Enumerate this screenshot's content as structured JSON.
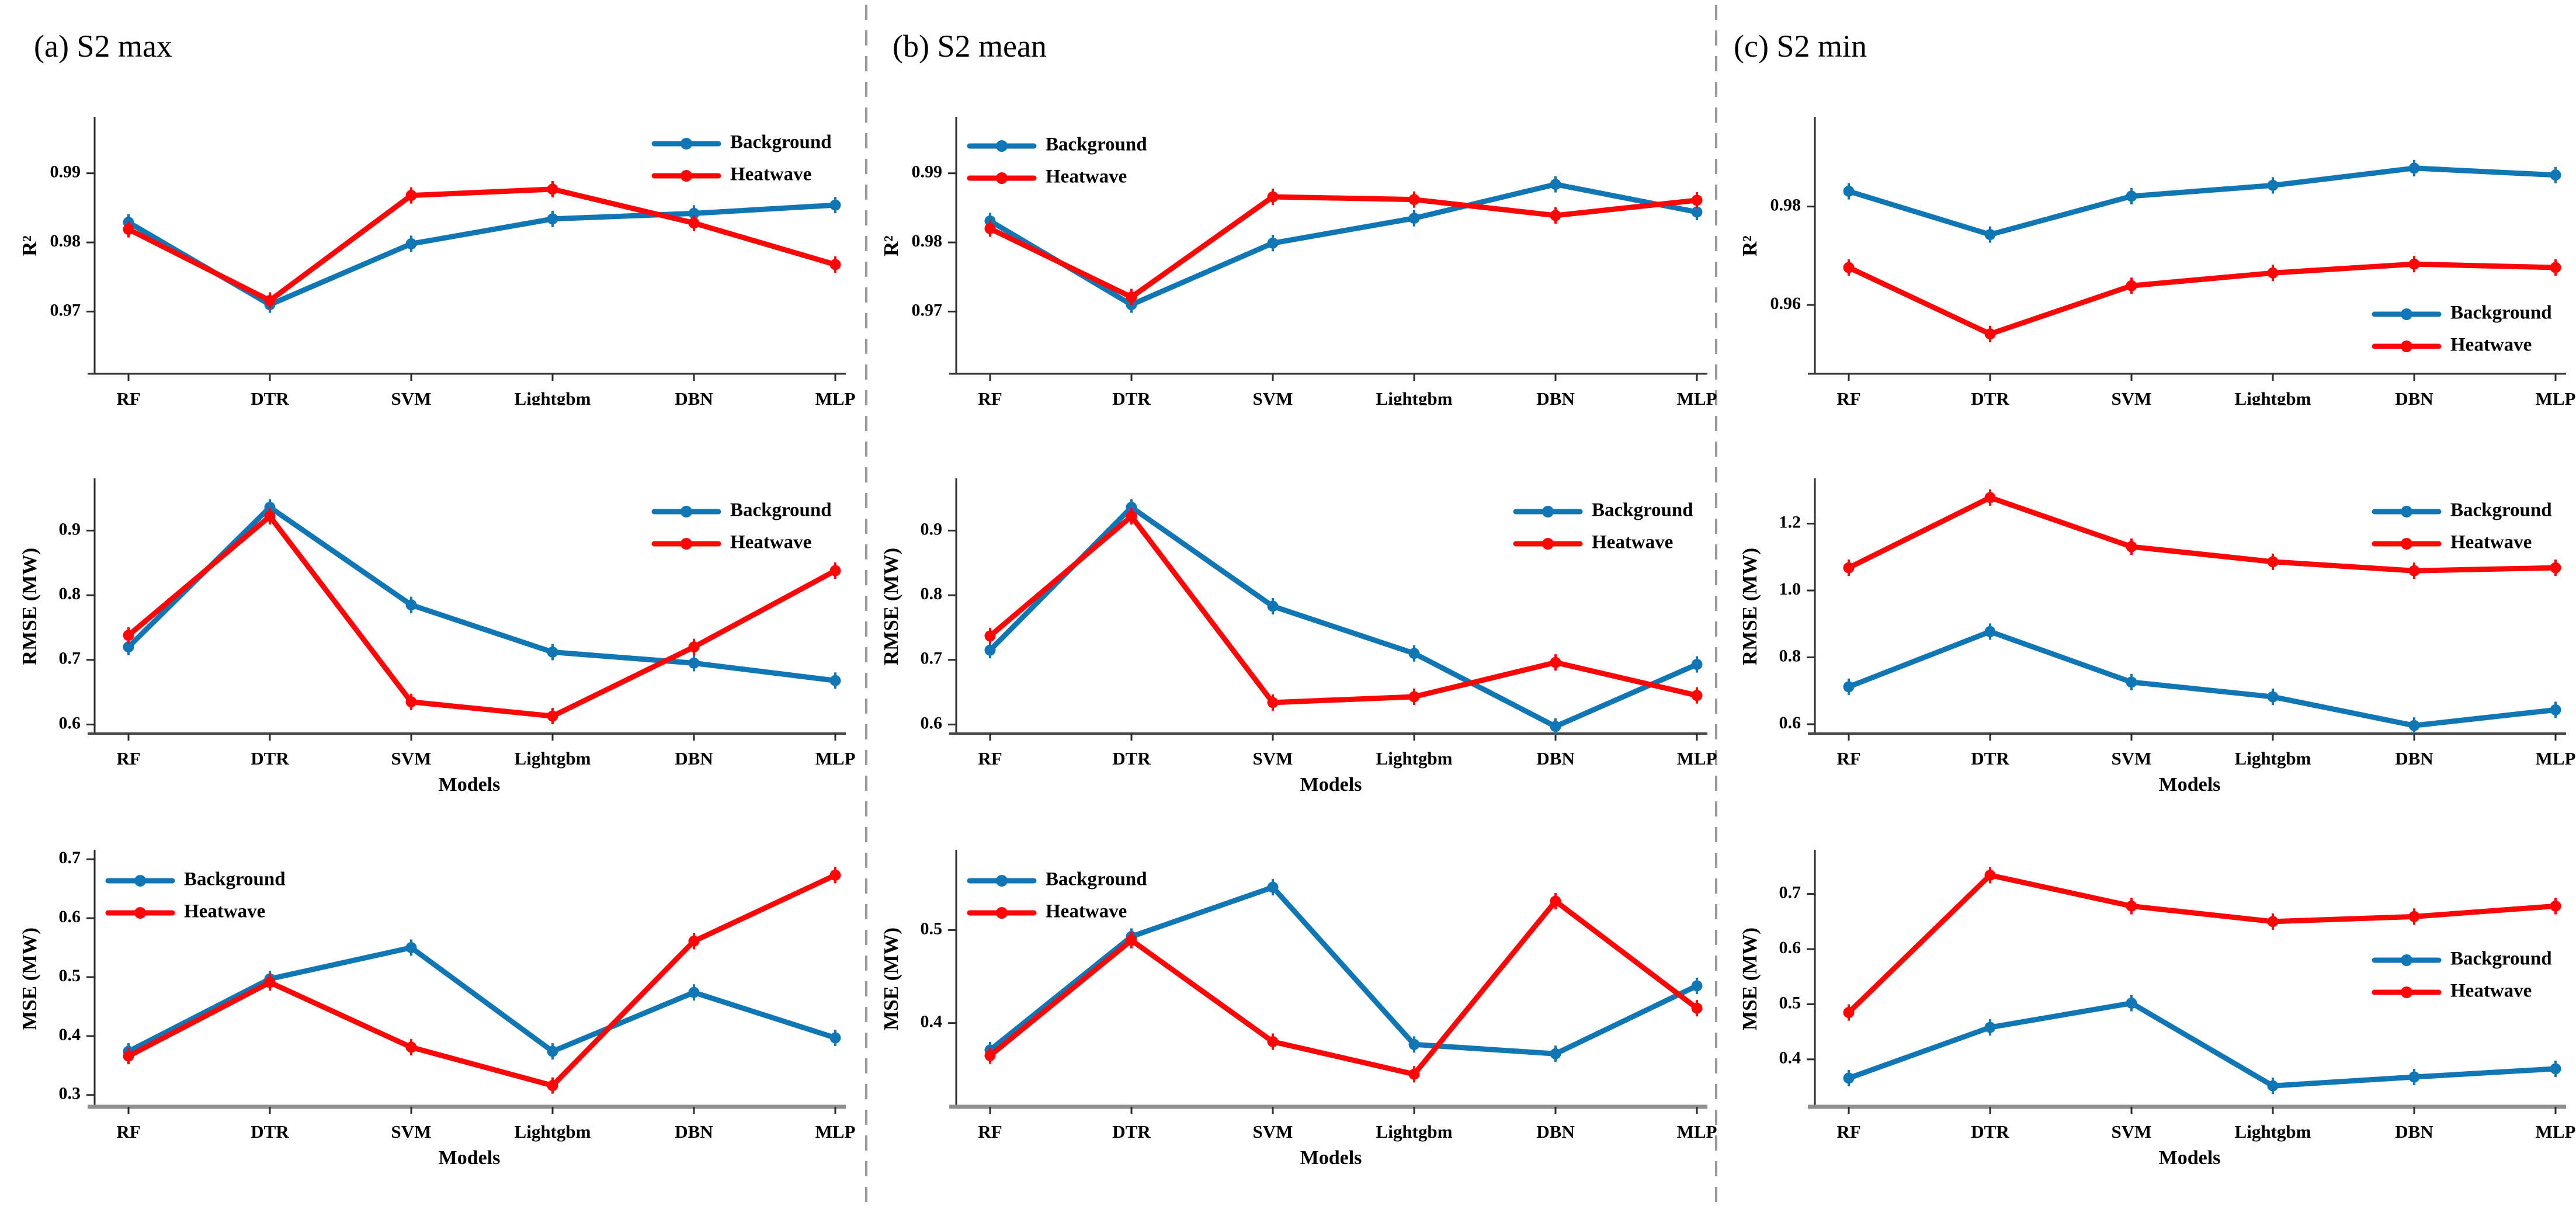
{
  "figure": {
    "panel_titles": [
      "(a) S2 max",
      "(b) S2 mean",
      "(c) S2 min"
    ],
    "models": [
      "RF",
      "DTR",
      "SVM",
      "Lightgbm",
      "DBN",
      "MLP"
    ],
    "xlabel": "Models",
    "series_labels": [
      "Background",
      "Heatwave"
    ],
    "colors": {
      "background": "#1076b4",
      "heatwave": "#fb0707",
      "separator": "#9b9b9b",
      "axis": "#2b2b2b"
    }
  },
  "chart_data": [
    {
      "panel": "(a) S2 max",
      "metric": "R2",
      "type": "line",
      "ylabel": "R²",
      "xlabel": "Models",
      "categories": [
        "RF",
        "DTR",
        "SVM",
        "Lightgbm",
        "DBN",
        "MLP"
      ],
      "yticks": [
        0.97,
        0.98,
        0.99
      ],
      "ytick_labels": [
        "0.97",
        "0.98",
        "0.99"
      ],
      "ylim": [
        0.961,
        0.998
      ],
      "legend_pos": "top-right",
      "grid": false,
      "series": [
        {
          "name": "Background",
          "values": [
            0.9829,
            0.971,
            0.9798,
            0.9834,
            0.9842,
            0.9854
          ]
        },
        {
          "name": "Heatwave",
          "values": [
            0.9819,
            0.9716,
            0.9868,
            0.9877,
            0.9828,
            0.9768
          ]
        }
      ]
    },
    {
      "panel": "(a) S2 max",
      "metric": "RMSE",
      "type": "line",
      "ylabel": "RMSE (MW)",
      "xlabel": "Models",
      "categories": [
        "RF",
        "DTR",
        "SVM",
        "Lightgbm",
        "DBN",
        "MLP"
      ],
      "yticks": [
        0.6,
        0.7,
        0.8,
        0.9
      ],
      "ytick_labels": [
        "0.6",
        "0.7",
        "0.8",
        "0.9"
      ],
      "ylim": [
        0.586,
        0.979
      ],
      "legend_pos": "top-right",
      "grid": false,
      "series": [
        {
          "name": "Background",
          "values": [
            0.72,
            0.936,
            0.785,
            0.712,
            0.695,
            0.668
          ]
        },
        {
          "name": "Heatwave",
          "values": [
            0.738,
            0.922,
            0.635,
            0.613,
            0.72,
            0.838
          ]
        }
      ]
    },
    {
      "panel": "(a) S2 max",
      "metric": "MSE",
      "type": "line",
      "ylabel": "MSE (MW)",
      "xlabel": "Models",
      "categories": [
        "RF",
        "DTR",
        "SVM",
        "Lightgbm",
        "DBN",
        "MLP"
      ],
      "yticks": [
        0.3,
        0.4,
        0.5,
        0.6,
        0.7
      ],
      "ytick_labels": [
        "0.3",
        "0.4",
        "0.5",
        "0.6",
        "0.7"
      ],
      "ylim": [
        0.28,
        0.714
      ],
      "legend_pos": "top-left",
      "grid": false,
      "series": [
        {
          "name": "Background",
          "values": [
            0.374,
            0.497,
            0.55,
            0.374,
            0.474,
            0.397
          ]
        },
        {
          "name": "Heatwave",
          "values": [
            0.366,
            0.491,
            0.381,
            0.316,
            0.561,
            0.673
          ]
        }
      ]
    },
    {
      "panel": "(b) S2 mean",
      "metric": "R2",
      "type": "line",
      "ylabel": "R²",
      "xlabel": "Models",
      "categories": [
        "RF",
        "DTR",
        "SVM",
        "Lightgbm",
        "DBN",
        "MLP"
      ],
      "yticks": [
        0.97,
        0.98,
        0.99
      ],
      "ytick_labels": [
        "0.97",
        "0.98",
        "0.99"
      ],
      "ylim": [
        0.961,
        0.998
      ],
      "legend_pos": "top-left",
      "grid": false,
      "series": [
        {
          "name": "Background",
          "values": [
            0.9831,
            0.971,
            0.9799,
            0.9835,
            0.9884,
            0.9844
          ]
        },
        {
          "name": "Heatwave",
          "values": [
            0.982,
            0.9721,
            0.9866,
            0.9862,
            0.9839,
            0.9861
          ]
        }
      ]
    },
    {
      "panel": "(b) S2 mean",
      "metric": "RMSE",
      "type": "line",
      "ylabel": "RMSE (MW)",
      "xlabel": "Models",
      "categories": [
        "RF",
        "DTR",
        "SVM",
        "Lightgbm",
        "DBN",
        "MLP"
      ],
      "yticks": [
        0.6,
        0.7,
        0.8,
        0.9
      ],
      "ytick_labels": [
        "0.6",
        "0.7",
        "0.8",
        "0.9"
      ],
      "ylim": [
        0.586,
        0.979
      ],
      "legend_pos": "top-right",
      "grid": false,
      "series": [
        {
          "name": "Background",
          "values": [
            0.715,
            0.936,
            0.783,
            0.71,
            0.597,
            0.693
          ]
        },
        {
          "name": "Heatwave",
          "values": [
            0.737,
            0.922,
            0.634,
            0.643,
            0.696,
            0.645
          ]
        }
      ]
    },
    {
      "panel": "(b) S2 mean",
      "metric": "MSE",
      "type": "line",
      "ylabel": "MSE (MW)",
      "xlabel": "Models",
      "categories": [
        "RF",
        "DTR",
        "SVM",
        "Lightgbm",
        "DBN",
        "MLP"
      ],
      "yticks": [
        0.4,
        0.5
      ],
      "ytick_labels": [
        "0.4",
        "0.5"
      ],
      "ylim": [
        0.31,
        0.585
      ],
      "legend_pos": "top-left",
      "grid": false,
      "series": [
        {
          "name": "Background",
          "values": [
            0.371,
            0.493,
            0.546,
            0.377,
            0.367,
            0.44
          ]
        },
        {
          "name": "Heatwave",
          "values": [
            0.365,
            0.489,
            0.38,
            0.345,
            0.531,
            0.416
          ]
        }
      ]
    },
    {
      "panel": "(c) S2 min",
      "metric": "R2",
      "type": "line",
      "ylabel": "R²",
      "xlabel": "Models",
      "categories": [
        "RF",
        "DTR",
        "SVM",
        "Lightgbm",
        "DBN",
        "MLP"
      ],
      "yticks": [
        0.96,
        0.98
      ],
      "ytick_labels": [
        "0.96",
        "0.98"
      ],
      "ylim": [
        0.946,
        0.998
      ],
      "legend_pos": "bottom-right",
      "grid": false,
      "series": [
        {
          "name": "Background",
          "values": [
            0.9831,
            0.9743,
            0.9821,
            0.9843,
            0.9878,
            0.9864
          ]
        },
        {
          "name": "Heatwave",
          "values": [
            0.9676,
            0.9541,
            0.9639,
            0.9665,
            0.9683,
            0.9676
          ]
        }
      ]
    },
    {
      "panel": "(c) S2 min",
      "metric": "RMSE",
      "type": "line",
      "ylabel": "RMSE (MW)",
      "xlabel": "Models",
      "categories": [
        "RF",
        "DTR",
        "SVM",
        "Lightgbm",
        "DBN",
        "MLP"
      ],
      "yticks": [
        0.6,
        0.8,
        1.0,
        1.2
      ],
      "ytick_labels": [
        "0.6",
        "0.8",
        "1.0",
        "1.2"
      ],
      "ylim": [
        0.572,
        1.332
      ],
      "legend_pos": "top-right",
      "grid": false,
      "series": [
        {
          "name": "Background",
          "values": [
            0.712,
            0.877,
            0.726,
            0.682,
            0.596,
            0.643
          ]
        },
        {
          "name": "Heatwave",
          "values": [
            1.068,
            1.278,
            1.131,
            1.086,
            1.059,
            1.068
          ]
        }
      ]
    },
    {
      "panel": "(c) S2 min",
      "metric": "MSE",
      "type": "line",
      "ylabel": "MSE (MW)",
      "xlabel": "Models",
      "categories": [
        "RF",
        "DTR",
        "SVM",
        "Lightgbm",
        "DBN",
        "MLP"
      ],
      "yticks": [
        0.4,
        0.5,
        0.6,
        0.7
      ],
      "ytick_labels": [
        "0.4",
        "0.5",
        "0.6",
        "0.7"
      ],
      "ylim": [
        0.314,
        0.778
      ],
      "legend_pos": "mid-right",
      "grid": false,
      "series": [
        {
          "name": "Background",
          "values": [
            0.366,
            0.458,
            0.502,
            0.352,
            0.368,
            0.383
          ]
        },
        {
          "name": "Heatwave",
          "values": [
            0.485,
            0.734,
            0.678,
            0.65,
            0.659,
            0.678
          ]
        }
      ]
    }
  ]
}
